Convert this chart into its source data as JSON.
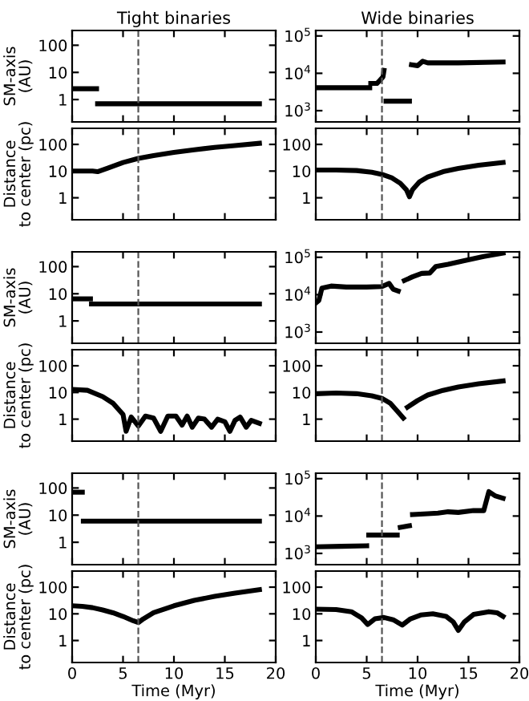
{
  "chart_data": [
    {
      "type": "line",
      "title": "Tight binaries",
      "ylabel": "SM-axis\n(AU)",
      "log": true,
      "xlim": [
        0,
        20
      ],
      "xticks": [
        0,
        5,
        10,
        15,
        20
      ],
      "ylim": [
        0.15,
        350
      ],
      "yticks": [
        1,
        10,
        100
      ],
      "tick_labels": "y",
      "ref_lines": [
        {
          "axis": "x",
          "value": 6.5,
          "line_style": "dashed",
          "color": "#555555"
        }
      ],
      "series": [
        {
          "color": "#000000",
          "x": [
            0,
            2.4,
            2.45,
            2.5,
            18.4
          ],
          "values": [
            2.5,
            2.5,
            null,
            0.7,
            0.7
          ]
        }
      ]
    },
    {
      "type": "line",
      "title": "Wide binaries",
      "log": true,
      "xlim": [
        0,
        20
      ],
      "xticks": [
        0,
        5,
        10,
        15,
        20
      ],
      "ylim": [
        500,
        140000
      ],
      "yticks": [
        {
          "value": 1000,
          "label": "10$^{3}$"
        },
        {
          "value": 10000,
          "label": "10$^{4}$"
        },
        {
          "value": 100000,
          "label": "10$^{5}$"
        }
      ],
      "tick_labels": "y",
      "ref_lines": [
        {
          "axis": "x",
          "value": 6.5,
          "line_style": "dashed",
          "color": "#555555"
        }
      ],
      "series": [
        {
          "color": "#000000",
          "x": [
            0,
            5.3,
            5.35,
            5.4,
            6.0,
            6.3,
            6.6,
            6.7,
            6.8,
            6.9,
            9.2,
            9.3,
            9.4,
            10.0,
            10.5,
            11,
            14,
            18.4
          ],
          "values": [
            4100,
            4100,
            null,
            5350,
            5350,
            6500,
            8000,
            12000,
            null,
            1800,
            1800,
            null,
            17000,
            16000,
            21000,
            19000,
            19000,
            20000
          ]
        }
      ]
    },
    {
      "type": "line",
      "ylabel": "Distance\nto center (pc)",
      "log": true,
      "xlim": [
        0,
        20
      ],
      "xticks": [
        0,
        5,
        10,
        15,
        20
      ],
      "ylim": [
        0.15,
        400
      ],
      "yticks": [
        1,
        10,
        100
      ],
      "tick_labels": "y",
      "ref_lines": [
        {
          "axis": "x",
          "value": 6.5,
          "line_style": "dashed",
          "color": "#555555"
        }
      ],
      "series": [
        {
          "color": "#000000",
          "x": [
            0,
            2,
            2.5,
            3.5,
            5,
            6.5,
            8,
            10,
            12,
            14,
            16,
            18.4
          ],
          "values": [
            10,
            10,
            9.5,
            13,
            21,
            30,
            38,
            50,
            63,
            77,
            90,
            110
          ]
        }
      ]
    },
    {
      "type": "line",
      "log": true,
      "xlim": [
        0,
        20
      ],
      "xticks": [
        0,
        5,
        10,
        15,
        20
      ],
      "ylim": [
        0.15,
        400
      ],
      "yticks": [
        1,
        10,
        100
      ],
      "tick_labels": "y",
      "ref_lines": [
        {
          "axis": "x",
          "value": 6.5,
          "line_style": "dashed",
          "color": "#555555"
        }
      ],
      "series": [
        {
          "color": "#000000",
          "x": [
            0,
            2,
            4,
            5.5,
            6.5,
            7.5,
            8.3,
            8.9,
            9.2,
            9.5,
            10.2,
            11,
            12.5,
            14,
            16,
            18.4
          ],
          "values": [
            11,
            11,
            10.5,
            9,
            7.5,
            5.5,
            3.5,
            2,
            1.1,
            2,
            4,
            6,
            9.5,
            12.5,
            16.5,
            21
          ]
        }
      ]
    },
    {
      "type": "line",
      "ylabel": "SM-axis\n(AU)",
      "log": true,
      "xlim": [
        0,
        20
      ],
      "xticks": [
        0,
        5,
        10,
        15,
        20
      ],
      "ylim": [
        0.15,
        350
      ],
      "yticks": [
        1,
        10,
        100
      ],
      "tick_labels": "y",
      "ref_lines": [
        {
          "axis": "x",
          "value": 6.5,
          "line_style": "dashed",
          "color": "#555555"
        }
      ],
      "series": [
        {
          "color": "#000000",
          "x": [
            0,
            1.8
          ],
          "values": [
            6.5,
            6.5
          ]
        },
        {
          "color": "#000000",
          "x": [
            1.9,
            18.4
          ],
          "values": [
            4.2,
            4.2
          ]
        }
      ]
    },
    {
      "type": "line",
      "log": true,
      "xlim": [
        0,
        20
      ],
      "xticks": [
        0,
        5,
        10,
        15,
        20
      ],
      "ylim": [
        500,
        140000
      ],
      "yticks": [
        {
          "value": 1000,
          "label": "10$^{3}$"
        },
        {
          "value": 10000,
          "label": "10$^{4}$"
        },
        {
          "value": 100000,
          "label": "10$^{5}$"
        }
      ],
      "tick_labels": "y",
      "ref_lines": [
        {
          "axis": "x",
          "value": 6.5,
          "line_style": "dashed",
          "color": "#555555"
        }
      ],
      "series": [
        {
          "color": "#000000",
          "x": [
            0,
            0.3,
            0.6,
            1.5,
            3,
            5,
            6.5,
            7.2,
            7.6,
            8.1,
            8.4,
            8.7,
            9.5,
            10.4,
            11.2,
            11.8,
            13,
            14.5,
            16.5,
            18.4
          ],
          "values": [
            6000,
            7000,
            15000,
            17000,
            16000,
            16000,
            16500,
            20000,
            14000,
            12500,
            null,
            24000,
            30000,
            37000,
            38000,
            57000,
            65000,
            80000,
            105000,
            130000
          ]
        }
      ]
    },
    {
      "type": "line",
      "ylabel": "Distance\nto center (pc)",
      "log": true,
      "xlim": [
        0,
        20
      ],
      "xticks": [
        0,
        5,
        10,
        15,
        20
      ],
      "ylim": [
        0.15,
        400
      ],
      "yticks": [
        1,
        10,
        100
      ],
      "tick_labels": "y",
      "ref_lines": [
        {
          "axis": "x",
          "value": 6.5,
          "line_style": "dashed",
          "color": "#555555"
        }
      ],
      "series": [
        {
          "color": "#000000",
          "x": [
            0,
            1.5,
            3,
            4,
            5.0,
            5.3,
            5.8,
            6.5,
            7.2,
            8.0,
            8.7,
            9.4,
            10.2,
            10.8,
            11.3,
            11.8,
            12.4,
            13.0,
            13.7,
            14.3,
            15.0,
            15.5,
            16.0,
            16.5,
            17.1,
            17.6,
            18.4
          ],
          "values": [
            13,
            12,
            7,
            4,
            1.5,
            0.35,
            1.2,
            0.55,
            1.3,
            1.1,
            0.35,
            1.3,
            1.3,
            0.6,
            1.3,
            0.5,
            1.1,
            1.0,
            0.5,
            1.0,
            0.8,
            0.35,
            0.9,
            1.2,
            0.5,
            0.9,
            0.7
          ]
        }
      ]
    },
    {
      "type": "line",
      "log": true,
      "xlim": [
        0,
        20
      ],
      "xticks": [
        0,
        5,
        10,
        15,
        20
      ],
      "ylim": [
        0.15,
        400
      ],
      "yticks": [
        1,
        10,
        100
      ],
      "tick_labels": "y",
      "ref_lines": [
        {
          "axis": "x",
          "value": 6.5,
          "line_style": "dashed",
          "color": "#555555"
        }
      ],
      "series": [
        {
          "color": "#000000",
          "x": [
            0,
            2,
            4,
            5.5,
            6.5,
            7.3,
            8,
            8.6,
            8.8,
            9.0,
            10,
            11,
            12.5,
            14,
            16,
            18.4
          ],
          "values": [
            9,
            9.5,
            9,
            7.5,
            6,
            4,
            2,
            1.1,
            null,
            2.8,
            5,
            8,
            12,
            16,
            21,
            27
          ]
        }
      ]
    },
    {
      "type": "line",
      "ylabel": "SM-axis\n(AU)",
      "log": true,
      "xlim": [
        0,
        20
      ],
      "xticks": [
        0,
        5,
        10,
        15,
        20
      ],
      "ylim": [
        0.15,
        350
      ],
      "yticks": [
        1,
        10,
        100
      ],
      "tick_labels": "y",
      "ref_lines": [
        {
          "axis": "x",
          "value": 6.5,
          "line_style": "dashed",
          "color": "#555555"
        }
      ],
      "series": [
        {
          "color": "#000000",
          "x": [
            0,
            1
          ],
          "values": [
            70,
            70
          ]
        },
        {
          "color": "#000000",
          "x": [
            1.1,
            18.4
          ],
          "values": [
            6,
            6
          ]
        }
      ]
    },
    {
      "type": "line",
      "log": true,
      "xlim": [
        0,
        20
      ],
      "xticks": [
        0,
        5,
        10,
        15,
        20
      ],
      "ylim": [
        500,
        140000
      ],
      "yticks": [
        {
          "value": 1000,
          "label": "10$^{3}$"
        },
        {
          "value": 10000,
          "label": "10$^{4}$"
        },
        {
          "value": 100000,
          "label": "10$^{5}$"
        }
      ],
      "tick_labels": "y",
      "ref_lines": [
        {
          "axis": "x",
          "value": 6.5,
          "line_style": "dashed",
          "color": "#555555"
        }
      ],
      "series": [
        {
          "color": "#000000",
          "x": [
            0,
            2.5,
            5,
            5.1,
            5.2,
            8,
            8.15,
            8.3,
            9.2,
            9.35,
            9.5,
            11,
            12,
            13,
            14,
            15.5,
            16.5,
            17,
            17.6,
            18.4
          ],
          "values": [
            1500,
            1550,
            1600,
            null,
            3100,
            3100,
            null,
            5000,
            5500,
            null,
            11000,
            11500,
            12000,
            13000,
            12500,
            14000,
            14000,
            45000,
            35000,
            30000
          ]
        }
      ]
    },
    {
      "type": "line",
      "xlabel": "Time (Myr)",
      "ylabel": "Distance\nto center (pc)",
      "log": true,
      "xlim": [
        0,
        20
      ],
      "xticks": [
        0,
        5,
        10,
        15,
        20
      ],
      "ylim": [
        0.15,
        400
      ],
      "yticks": [
        1,
        10,
        100
      ],
      "ref_lines": [
        {
          "axis": "x",
          "value": 6.5,
          "line_style": "dashed",
          "color": "#555555"
        }
      ],
      "series": [
        {
          "color": "#000000",
          "x": [
            0,
            1,
            2,
            3,
            4,
            5,
            6,
            6.5,
            7,
            8,
            10,
            12,
            14,
            16,
            18.4
          ],
          "values": [
            20,
            19,
            17,
            14,
            11,
            8,
            5.5,
            4.7,
            6.5,
            11,
            20,
            32,
            45,
            60,
            80
          ]
        }
      ]
    },
    {
      "type": "line",
      "xlabel": "Time (Myr)",
      "log": true,
      "xlim": [
        0,
        20
      ],
      "xticks": [
        0,
        5,
        10,
        15,
        20
      ],
      "ylim": [
        0.15,
        400
      ],
      "yticks": [
        1,
        10,
        100
      ],
      "ref_lines": [
        {
          "axis": "x",
          "value": 6.5,
          "line_style": "dashed",
          "color": "#555555"
        }
      ],
      "series": [
        {
          "color": "#000000",
          "x": [
            0,
            2,
            3.5,
            4.5,
            5.1,
            5.8,
            6.7,
            7.6,
            8.5,
            9.3,
            10.3,
            11.5,
            12.8,
            13.5,
            14,
            14.6,
            15.5,
            17,
            17.8,
            18.4
          ],
          "values": [
            15,
            14.5,
            12,
            7,
            4,
            6.5,
            7.3,
            6,
            3.8,
            6.5,
            9,
            10,
            8,
            5,
            2.4,
            5,
            9.5,
            12,
            11,
            8
          ]
        }
      ]
    }
  ]
}
